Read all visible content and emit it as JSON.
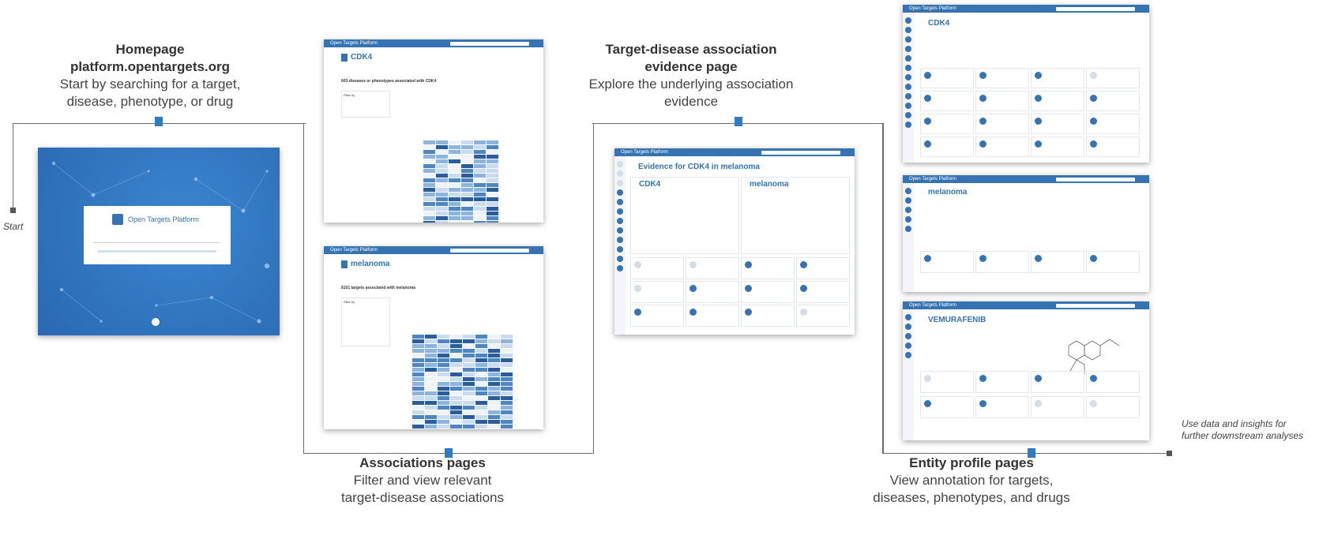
{
  "home": {
    "title": "Homepage",
    "url": "platform.opentargets.org",
    "desc1": "Start by searching for a target,",
    "desc2": "disease, phenotype, or drug",
    "logo": "Open Targets Platform"
  },
  "start_label": "Start",
  "assoc": {
    "title": "Associations pages",
    "desc1": "Filter and view relevant",
    "desc2": "target-disease associations",
    "cdk4": "CDK4",
    "cdk4_count": "603 diseases or phenotypes associated with CDK4",
    "melanoma": "melanoma",
    "melanoma_count": "8101 targets associated with melanoma",
    "filter_by": "Filter by",
    "app_name": "Open Targets Platform"
  },
  "evidence": {
    "title1": "Target-disease association",
    "title2": "evidence page",
    "desc1": "Explore the underlying association",
    "desc2": "evidence",
    "page_title": "Evidence for CDK4 in melanoma",
    "target": "CDK4",
    "disease": "melanoma"
  },
  "entity": {
    "title": "Entity profile pages",
    "desc1": "View annotation for targets,",
    "desc2": "diseases, phenotypes, and drugs",
    "target": "CDK4",
    "disease": "melanoma",
    "drug": "VEMURAFENIB"
  },
  "end_note1": "Use data and insights for",
  "end_note2": "further downstream analyses",
  "colors": {
    "brand": "#3573b2",
    "connector": "#6b6b6b",
    "marker": "#2f7bbf"
  }
}
